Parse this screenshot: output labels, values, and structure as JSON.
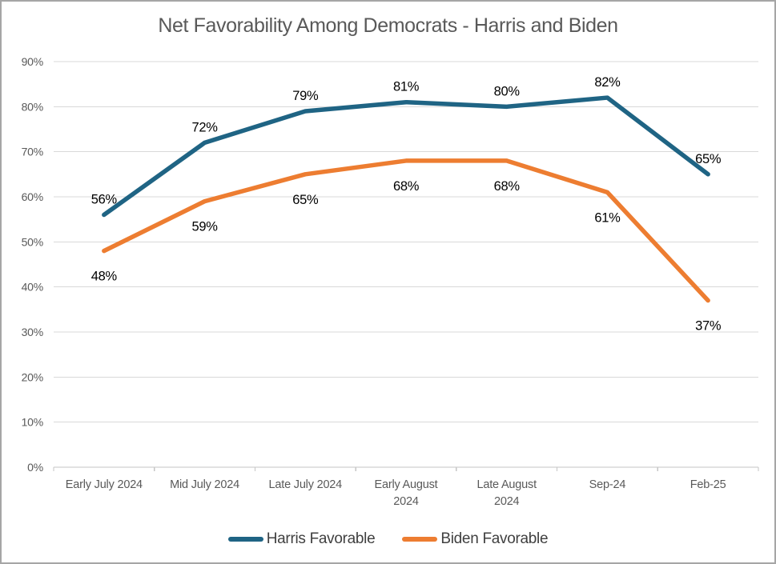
{
  "chart_data": {
    "type": "line",
    "title": "Net Favorability Among Democrats - Harris and Biden",
    "categories": [
      "Early July 2024",
      "Mid July 2024",
      "Late July 2024",
      "Early August 2024",
      "Late August 2024",
      "Sep-24",
      "Feb-25"
    ],
    "tick_labels": [
      [
        "Early July 2024"
      ],
      [
        "Mid July 2024"
      ],
      [
        "Late July 2024"
      ],
      [
        "Early August",
        "2024"
      ],
      [
        "Late August",
        "2024"
      ],
      [
        "Sep-24"
      ],
      [
        "Feb-25"
      ]
    ],
    "series": [
      {
        "name": "Harris Favorable",
        "values": [
          56,
          72,
          79,
          81,
          80,
          82,
          65
        ],
        "color": "#1F6484",
        "label_position": "above"
      },
      {
        "name": "Biden Favorable",
        "values": [
          48,
          59,
          65,
          68,
          68,
          61,
          37
        ],
        "color": "#ED7D31",
        "label_position": "below"
      }
    ],
    "ylim": [
      0,
      90
    ],
    "ytick_step": 10,
    "ytick_suffix": "%",
    "data_label_suffix": "%",
    "grid": true,
    "legend_position": "bottom"
  },
  "colors": {
    "title_text": "#595959",
    "axis_text": "#595959",
    "data_label_text": "#000000",
    "gridline": "#D9D9D9",
    "axis_line": "#C6C6C6",
    "tick_mark": "#C6C6C6",
    "legend_text": "#404040",
    "frame_border": "#A6A6A6",
    "background": "#FFFFFF"
  }
}
